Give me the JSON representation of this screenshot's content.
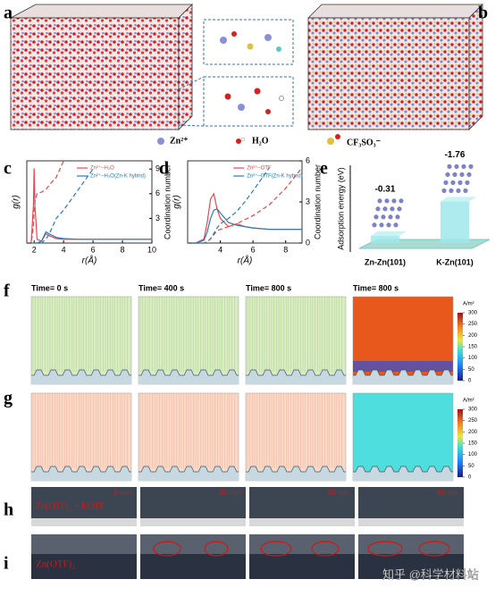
{
  "panels": {
    "a": "a",
    "b": "b",
    "c": "c",
    "d": "d",
    "e": "e",
    "f": "f",
    "g": "g",
    "h": "h",
    "i": "i"
  },
  "legend": [
    "Zn²⁺",
    "H₂O",
    "CF₃SO₃⁻"
  ],
  "chart_data": [
    {
      "type": "line",
      "xlabel": "r(Å)",
      "ylabel": "g(r)",
      "y2label": "Coordination number",
      "x": [
        1.5,
        1.8,
        1.95,
        2.0,
        2.05,
        2.2,
        2.5,
        2.8,
        3.0,
        3.5,
        4,
        5,
        6,
        7,
        8,
        9,
        10
      ],
      "xlim": [
        1.5,
        10
      ],
      "xticks": [
        2,
        4,
        6,
        8,
        10
      ],
      "ylim": [
        0,
        22
      ],
      "y2lim": [
        0,
        10
      ],
      "y2ticks": [
        3,
        6,
        9
      ],
      "series": [
        {
          "name": "Zn²⁺–H₂O",
          "color": "#e5484d",
          "values": [
            0,
            0,
            10,
            20,
            10,
            1,
            0.5,
            2.5,
            2,
            1.2,
            1,
            1,
            1,
            1,
            1,
            1,
            1
          ]
        },
        {
          "name": "Zn²⁺–H₂O(Zn-K hybrid)",
          "color": "#2a7ab8",
          "values": [
            0,
            0,
            0,
            0,
            0,
            0,
            0.5,
            3,
            2.5,
            1.5,
            1.2,
            1,
            1,
            1,
            1,
            1,
            1
          ]
        },
        {
          "color": "#e5484d",
          "dash": true,
          "axis": "y2",
          "values": [
            0,
            0,
            2,
            4,
            5,
            6,
            6.2,
            6.5,
            7,
            8,
            10,
            null,
            null,
            null,
            null,
            null,
            null
          ]
        },
        {
          "color": "#2a7ab8",
          "dash": true,
          "axis": "y2",
          "values": [
            0,
            0,
            0,
            0,
            0,
            0,
            0,
            0.5,
            1,
            3,
            4,
            6.5,
            9,
            null,
            null,
            null,
            null
          ]
        }
      ]
    },
    {
      "type": "line",
      "xlabel": "r(Å)",
      "ylabel": "g(r)",
      "y2label": "Coordination number",
      "x": [
        2,
        2.5,
        3,
        3.2,
        3.4,
        3.6,
        3.8,
        4,
        4.5,
        5,
        5.5,
        6,
        7,
        8,
        9
      ],
      "xlim": [
        2,
        9
      ],
      "xticks": [
        4,
        6,
        8
      ],
      "ylim": [
        0,
        6
      ],
      "y2lim": [
        0,
        6
      ],
      "y2ticks": [
        0,
        3,
        6
      ],
      "series": [
        {
          "name": "Zn²⁺–OTF",
          "color": "#e5484d",
          "values": [
            0,
            0,
            0.3,
            1.5,
            3.2,
            3.6,
            2.5,
            1.8,
            1.2,
            1.4,
            1.2,
            1.1,
            1,
            1,
            1
          ]
        },
        {
          "name": "Zn²⁺–OTF(Zn-K hybrid)",
          "color": "#2a7ab8",
          "values": [
            0,
            0,
            0.2,
            0.8,
            1.8,
            2.4,
            2.5,
            2.2,
            1.5,
            1.3,
            1.2,
            1.1,
            1,
            1,
            1
          ]
        },
        {
          "color": "#e5484d",
          "dash": true,
          "axis": "y2",
          "values": [
            0,
            0,
            0,
            0.1,
            0.3,
            0.6,
            0.9,
            1.0,
            1.2,
            1.4,
            1.7,
            2,
            2.8,
            4,
            5.5
          ]
        },
        {
          "color": "#2a7ab8",
          "dash": true,
          "axis": "y2",
          "values": [
            0,
            0,
            0,
            0.1,
            0.3,
            0.7,
            1.1,
            1.4,
            1.8,
            2.3,
            3,
            3.8,
            5.5,
            null,
            null
          ]
        }
      ]
    },
    {
      "type": "bar",
      "ylabel": "Adsorption energy (eV)",
      "categories": [
        "Zn-Zn(101)",
        "K-Zn(101)"
      ],
      "values": [
        -0.31,
        -1.76
      ],
      "ylim": [
        0,
        -2
      ],
      "color": "#9fe8ec"
    }
  ],
  "simulation": {
    "times": [
      "Time= 0 s",
      "Time= 400 s",
      "Time= 800 s",
      "Time= 800 s"
    ],
    "colorbar_f": {
      "unit": "A/m²",
      "lim": [
        0,
        300
      ],
      "ticks": [
        0,
        50,
        100,
        150,
        200,
        250,
        300
      ]
    },
    "colorbar_g": {
      "unit": "A/m²",
      "lim": [
        0,
        300
      ],
      "ticks": [
        0,
        50,
        100,
        150,
        200,
        250,
        300
      ]
    }
  },
  "photos": {
    "h_label": "Zn(OTF)₂ + KOTF",
    "i_label": "Zn(OTF)₂",
    "times": [
      "0 min",
      "30 min",
      "60 min",
      "90 min"
    ]
  },
  "watermark": "知乎 @科学材料站"
}
